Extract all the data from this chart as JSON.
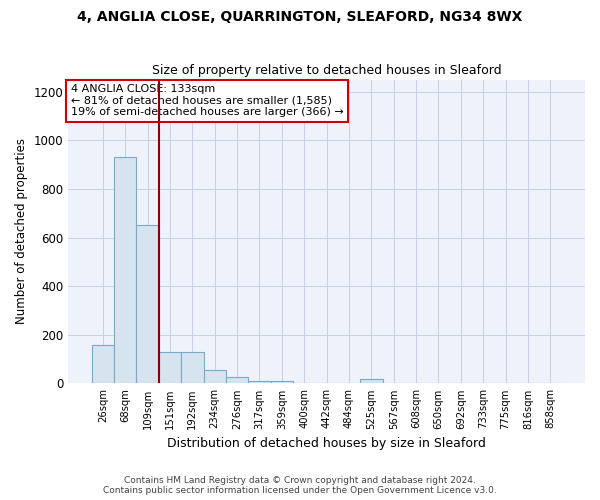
{
  "title": "4, ANGLIA CLOSE, QUARRINGTON, SLEAFORD, NG34 8WX",
  "subtitle": "Size of property relative to detached houses in Sleaford",
  "xlabel": "Distribution of detached houses by size in Sleaford",
  "ylabel": "Number of detached properties",
  "bar_color": "#d6e4f0",
  "bar_edge_color": "#7aaac8",
  "background_color": "#eef2fb",
  "grid_color": "#c8d0e8",
  "categories": [
    "26sqm",
    "68sqm",
    "109sqm",
    "151sqm",
    "192sqm",
    "234sqm",
    "276sqm",
    "317sqm",
    "359sqm",
    "400sqm",
    "442sqm",
    "484sqm",
    "525sqm",
    "567sqm",
    "608sqm",
    "650sqm",
    "692sqm",
    "733sqm",
    "775sqm",
    "816sqm",
    "858sqm"
  ],
  "values": [
    160,
    930,
    650,
    130,
    130,
    55,
    27,
    10,
    10,
    0,
    0,
    0,
    18,
    0,
    0,
    0,
    0,
    0,
    0,
    0,
    0
  ],
  "ylim": [
    0,
    1250
  ],
  "yticks": [
    0,
    200,
    400,
    600,
    800,
    1000,
    1200
  ],
  "property_line_x": 3.0,
  "annotation_title": "4 ANGLIA CLOSE: 133sqm",
  "annotation_line1": "← 81% of detached houses are smaller (1,585)",
  "annotation_line2": "19% of semi-detached houses are larger (366) →",
  "annotation_box_color": "#ffffff",
  "annotation_box_edge": "#cc0000",
  "property_line_color": "#8b0000",
  "footer_line1": "Contains HM Land Registry data © Crown copyright and database right 2024.",
  "footer_line2": "Contains public sector information licensed under the Open Government Licence v3.0."
}
